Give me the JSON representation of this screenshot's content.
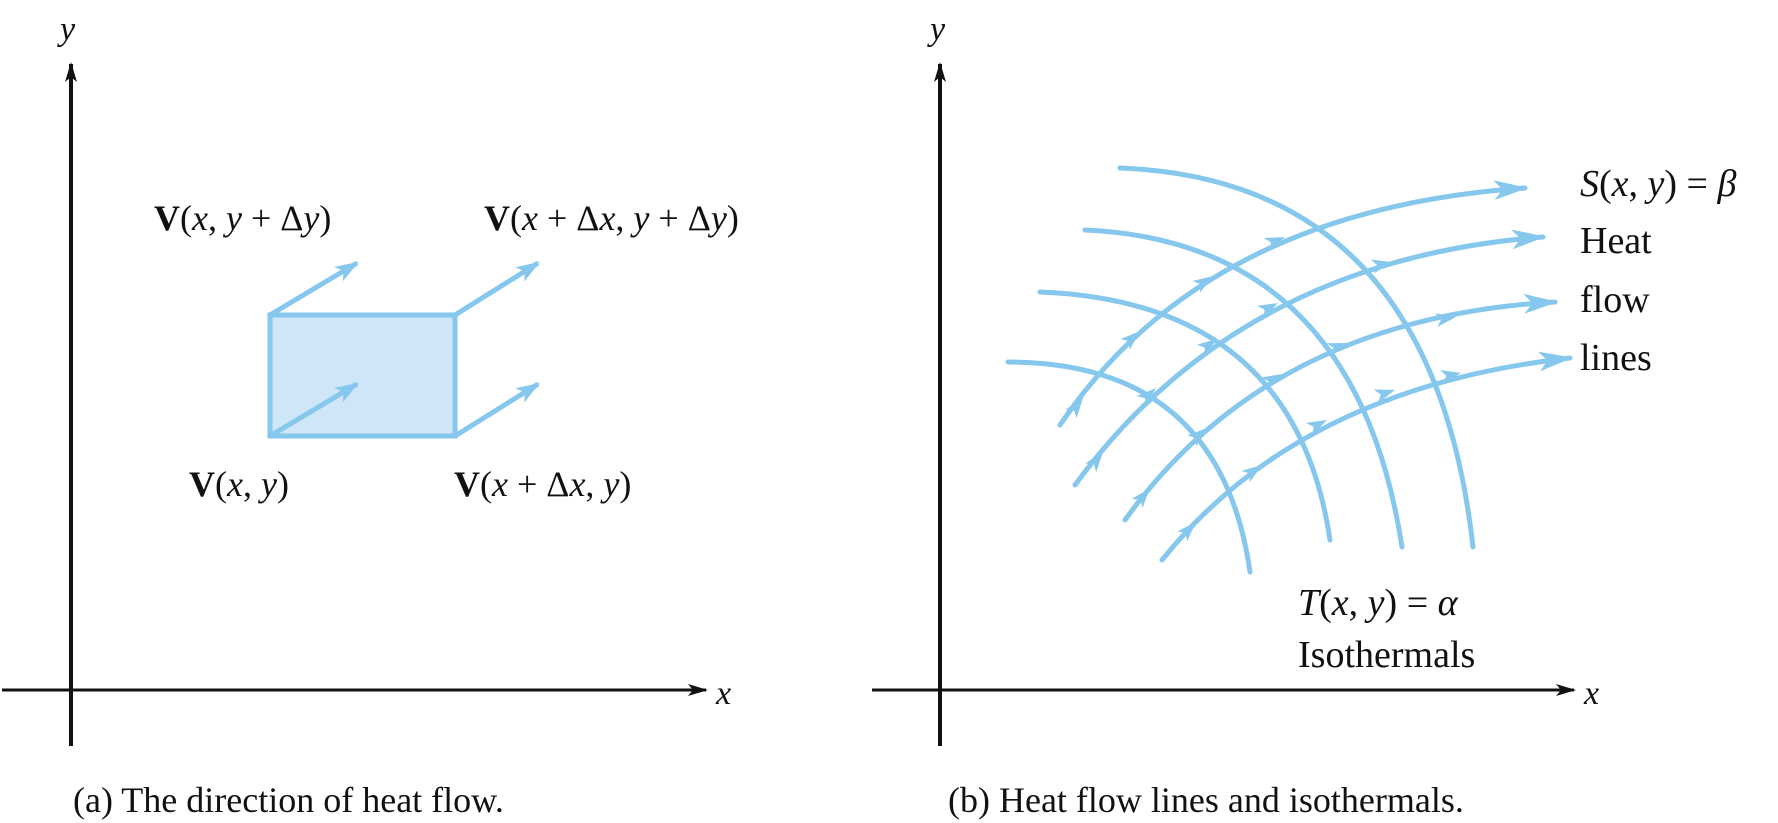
{
  "colors": {
    "axis": "#111111",
    "flow": "#86c7ee",
    "box_fill": "#cfe6f8",
    "box_stroke": "#86c7ee"
  },
  "panel_a": {
    "axis_y_label": "y",
    "axis_x_label": "x",
    "vectors": {
      "top_left": [
        "V",
        "(",
        "x",
        ", ",
        "y",
        " + Δ",
        "y",
        ")"
      ],
      "top_right": [
        "V",
        "(",
        "x",
        " + Δ",
        "x",
        ", ",
        "y",
        " + Δ",
        "y",
        ")"
      ],
      "bottom_left": [
        "V",
        "(",
        "x",
        ", ",
        "y",
        ")"
      ],
      "bottom_right": [
        "V",
        "(",
        "x",
        " + Δ",
        "x",
        ", ",
        "y",
        ")"
      ]
    },
    "caption": "(a) The direction of heat flow."
  },
  "panel_b": {
    "axis_y_label": "y",
    "axis_x_label": "x",
    "flow_label": {
      "equation": [
        "S",
        "(",
        "x",
        ", ",
        "y",
        ") = ",
        "β"
      ],
      "lines": [
        "Heat",
        "flow",
        "lines"
      ]
    },
    "isotherm_label": {
      "equation": [
        "T",
        "(",
        "x",
        ", ",
        "y",
        ") = ",
        "α"
      ],
      "text": "Isothermals"
    },
    "caption": "(b) Heat flow lines and isothermals."
  }
}
